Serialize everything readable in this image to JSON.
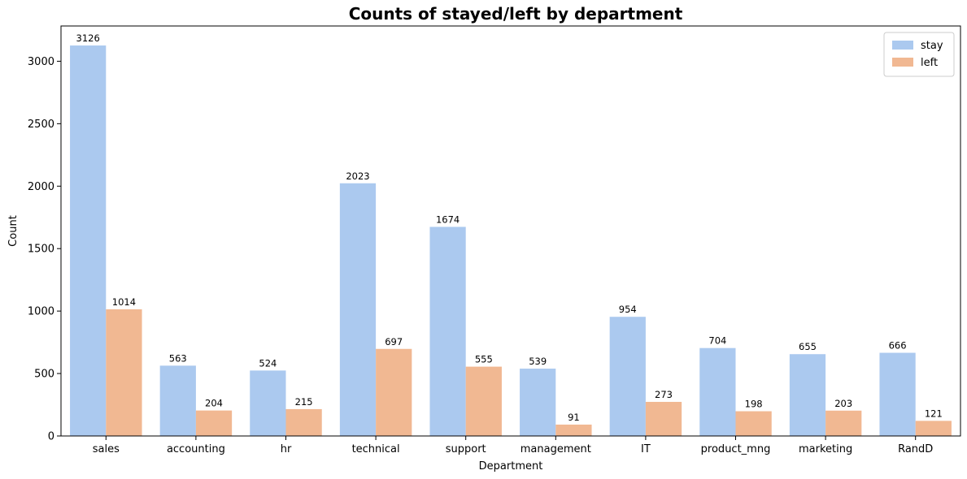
{
  "chart_data": {
    "type": "bar",
    "title": "Counts of stayed/left by department",
    "xlabel": "Department",
    "ylabel": "Count",
    "categories": [
      "sales",
      "accounting",
      "hr",
      "technical",
      "support",
      "management",
      "IT",
      "product_mng",
      "marketing",
      "RandD"
    ],
    "series": [
      {
        "name": "stay",
        "color": "#abc9ef",
        "values": [
          3126,
          563,
          524,
          2023,
          1674,
          539,
          954,
          704,
          655,
          666
        ]
      },
      {
        "name": "left",
        "color": "#f1b892",
        "values": [
          1014,
          204,
          215,
          697,
          555,
          91,
          273,
          198,
          203,
          121
        ]
      }
    ],
    "ylim": [
      0,
      3282.3
    ],
    "yticks": [
      0,
      500,
      1000,
      1500,
      2000,
      2500,
      3000
    ],
    "grid": false,
    "legend_position": "top-right"
  }
}
